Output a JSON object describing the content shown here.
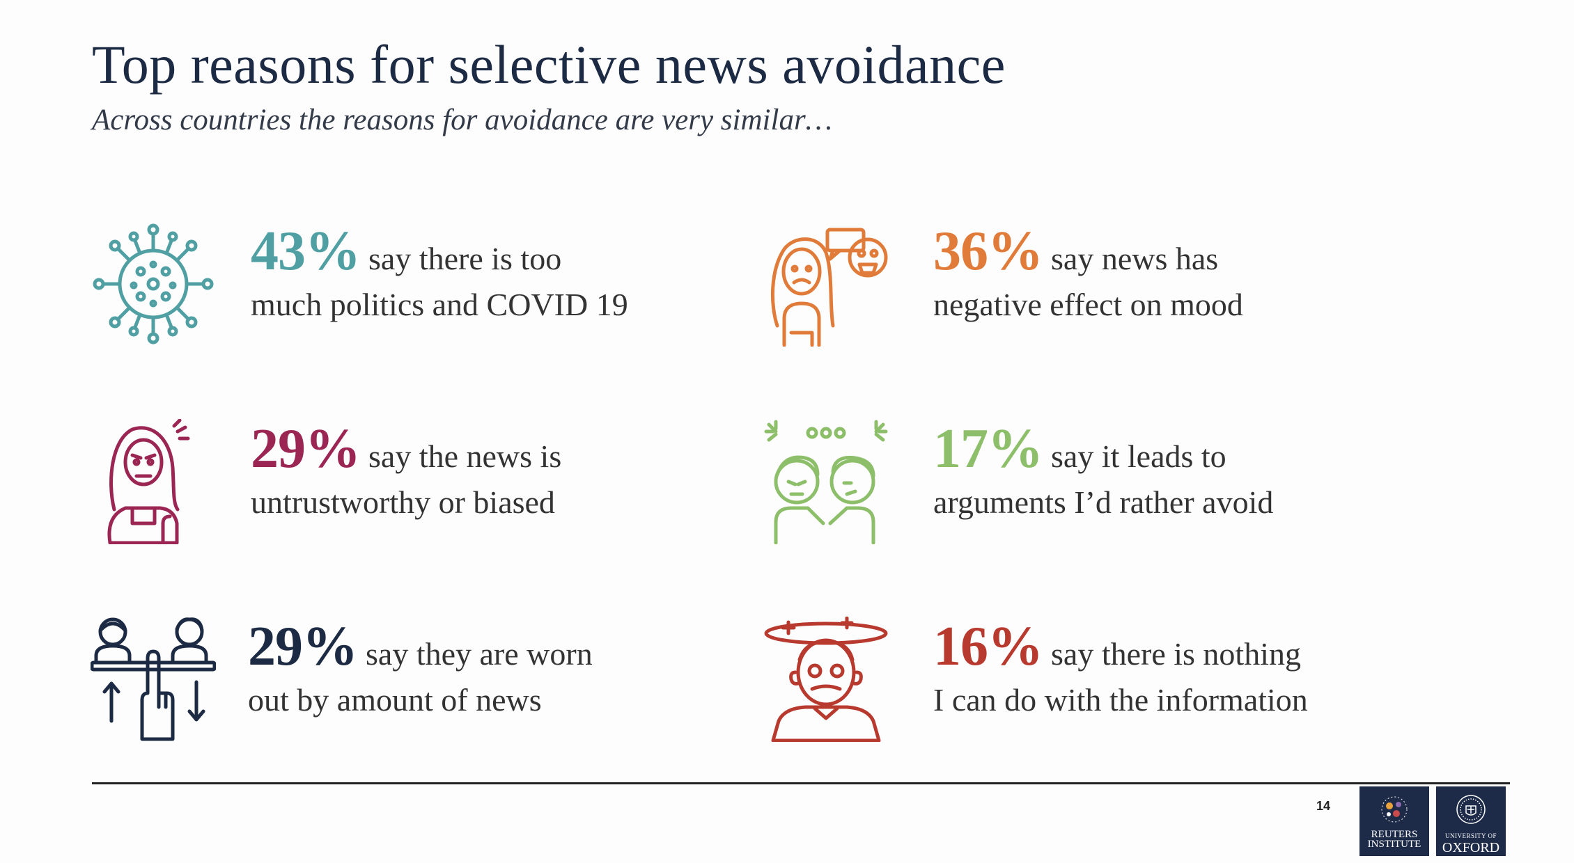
{
  "title": "Top reasons for selective news avoidance",
  "subtitle": "Across countries the reasons for avoidance are very similar…",
  "items": [
    {
      "icon": "virus-icon",
      "percent": "43%",
      "line1": "say there is too",
      "line2": "much politics and COVID 19",
      "color": "#4f9fa3"
    },
    {
      "icon": "stressed-woman-icon",
      "percent": "36%",
      "line1": "say news has",
      "line2": "negative effect on mood",
      "color": "#e07b39"
    },
    {
      "icon": "distrustful-woman-icon",
      "percent": "29%",
      "line1": "say the news is",
      "line2": "untrustworthy or biased",
      "color": "#9b2653"
    },
    {
      "icon": "arguing-people-icon",
      "percent": "17%",
      "line1": "say it leads to",
      "line2": "arguments I’d rather avoid",
      "color": "#8dbf6a"
    },
    {
      "icon": "worn-out-scale-icon",
      "percent": "29%",
      "line1": "say they are worn",
      "line2": "out by amount of news",
      "color": "#1c2a44"
    },
    {
      "icon": "dizzy-man-icon",
      "percent": "16%",
      "line1": "say there is nothing",
      "line2": "I can do with the information",
      "color": "#b83a2e"
    }
  ],
  "footer": {
    "page_number": "14",
    "logo_reuters": {
      "line1": "REUTERS",
      "line2": "INSTITUTE"
    },
    "logo_oxford": {
      "line1": "UNIVERSITY OF",
      "line2": "OXFORD"
    }
  }
}
